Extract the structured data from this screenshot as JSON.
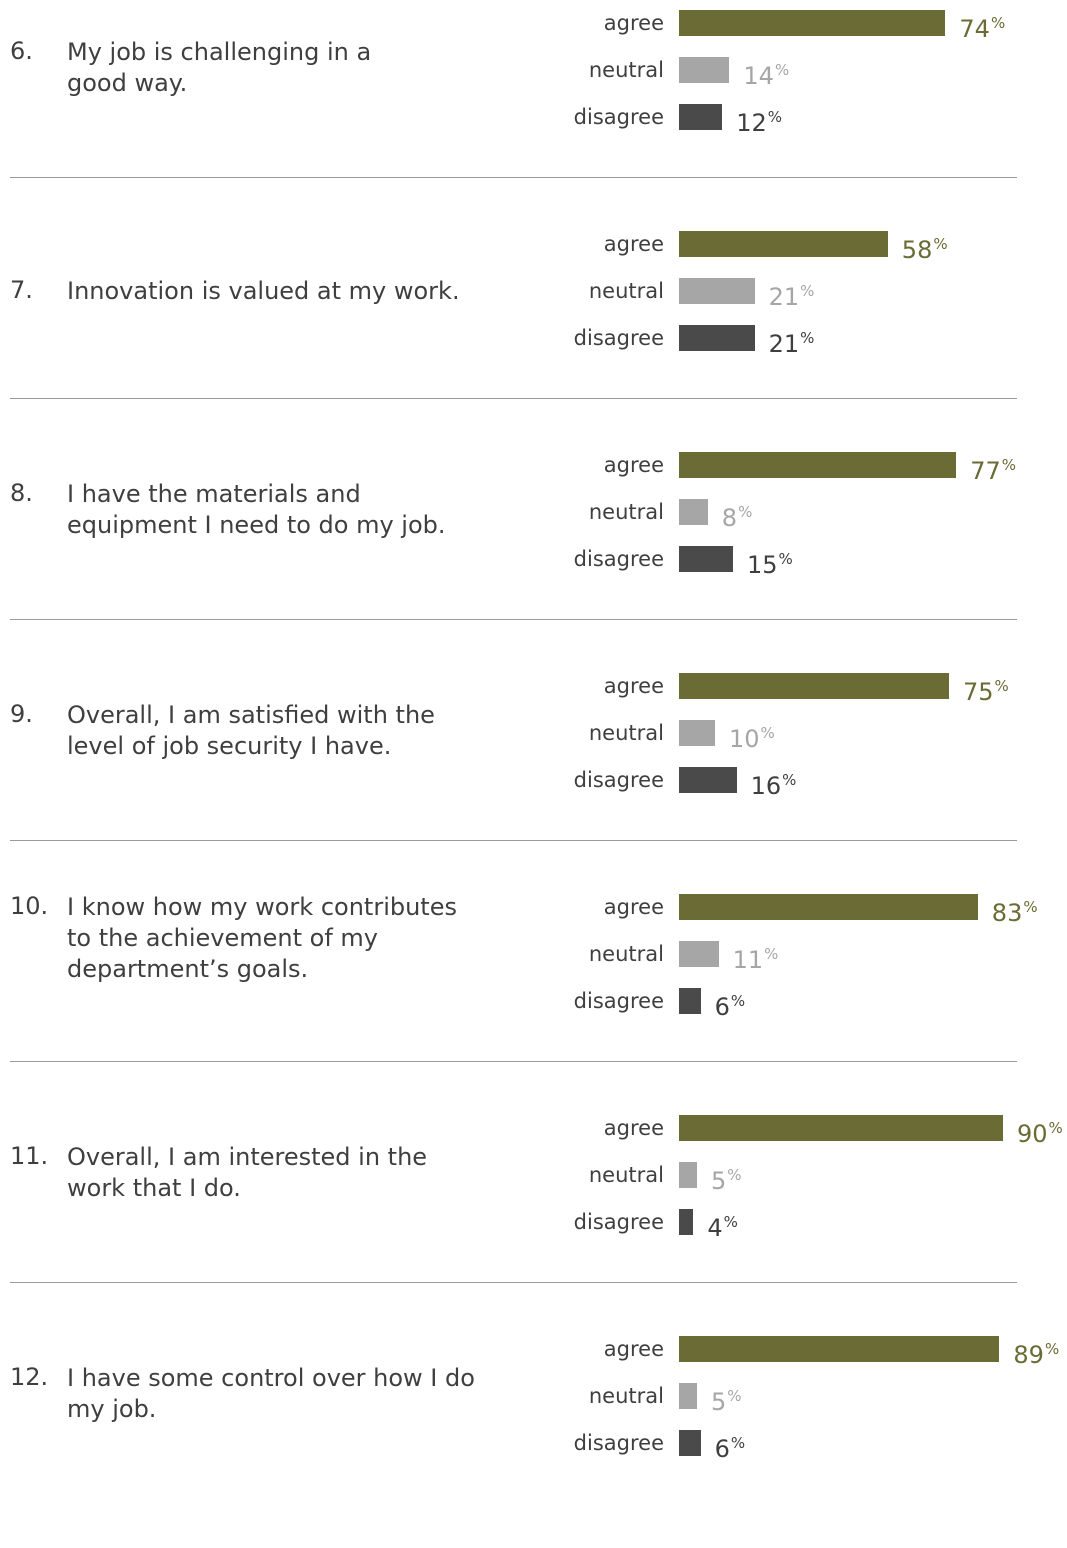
{
  "colors": {
    "agree": "#6b6b35",
    "neutral": "#a6a6a6",
    "disagree": "#4a4a4a",
    "text": "#3f3f3f",
    "divider": "#9a9a9a"
  },
  "percent_symbol": "%",
  "chart_data": {
    "type": "bar",
    "orientation": "horizontal",
    "categories": [
      "agree",
      "neutral",
      "disagree"
    ],
    "xlim": [
      0,
      100
    ],
    "grid": false,
    "questions": [
      {
        "number": "6.",
        "lines": [
          "My job is challenging in a",
          "good way."
        ],
        "values": [
          74,
          14,
          12
        ]
      },
      {
        "number": "7.",
        "lines": [
          "Innovation is valued at my work."
        ],
        "values": [
          58,
          21,
          21
        ]
      },
      {
        "number": "8.",
        "lines": [
          "I have the materials and",
          "equipment I need to do my job."
        ],
        "values": [
          77,
          8,
          15
        ]
      },
      {
        "number": "9.",
        "lines": [
          "Overall, I am satisfied with the",
          "level of job security I have."
        ],
        "values": [
          75,
          10,
          16
        ]
      },
      {
        "number": "10.",
        "lines": [
          "I know how my work contributes",
          "to the achievement of my",
          "department’s goals."
        ],
        "values": [
          83,
          11,
          6
        ]
      },
      {
        "number": "11.",
        "lines": [
          "Overall, I am interested in the",
          "work that I do."
        ],
        "values": [
          90,
          5,
          4
        ]
      },
      {
        "number": "12.",
        "lines": [
          "I have some control over how I do",
          "my job."
        ],
        "values": [
          89,
          5,
          6
        ]
      }
    ]
  }
}
